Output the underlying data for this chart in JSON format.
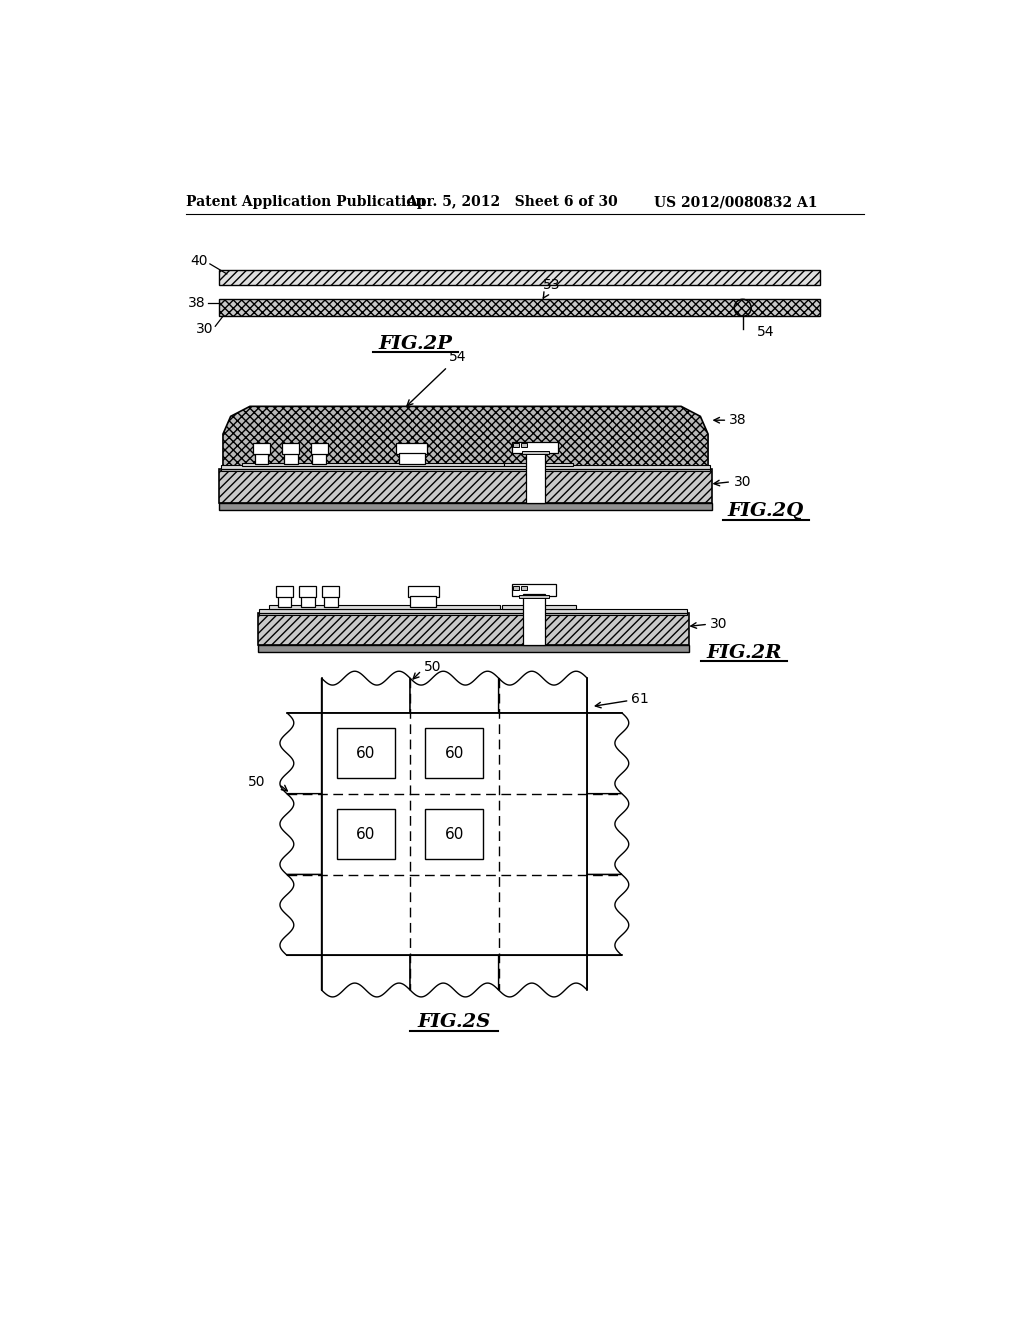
{
  "bg_color": "#ffffff",
  "text_color": "#000000",
  "header_left": "Patent Application Publication",
  "header_mid": "Apr. 5, 2012   Sheet 6 of 30",
  "header_right": "US 2012/0080832 A1",
  "fig_labels": {
    "2P": "FIG.2P",
    "2Q": "FIG.2Q",
    "2R": "FIG.2R",
    "2S": "FIG.2S"
  }
}
